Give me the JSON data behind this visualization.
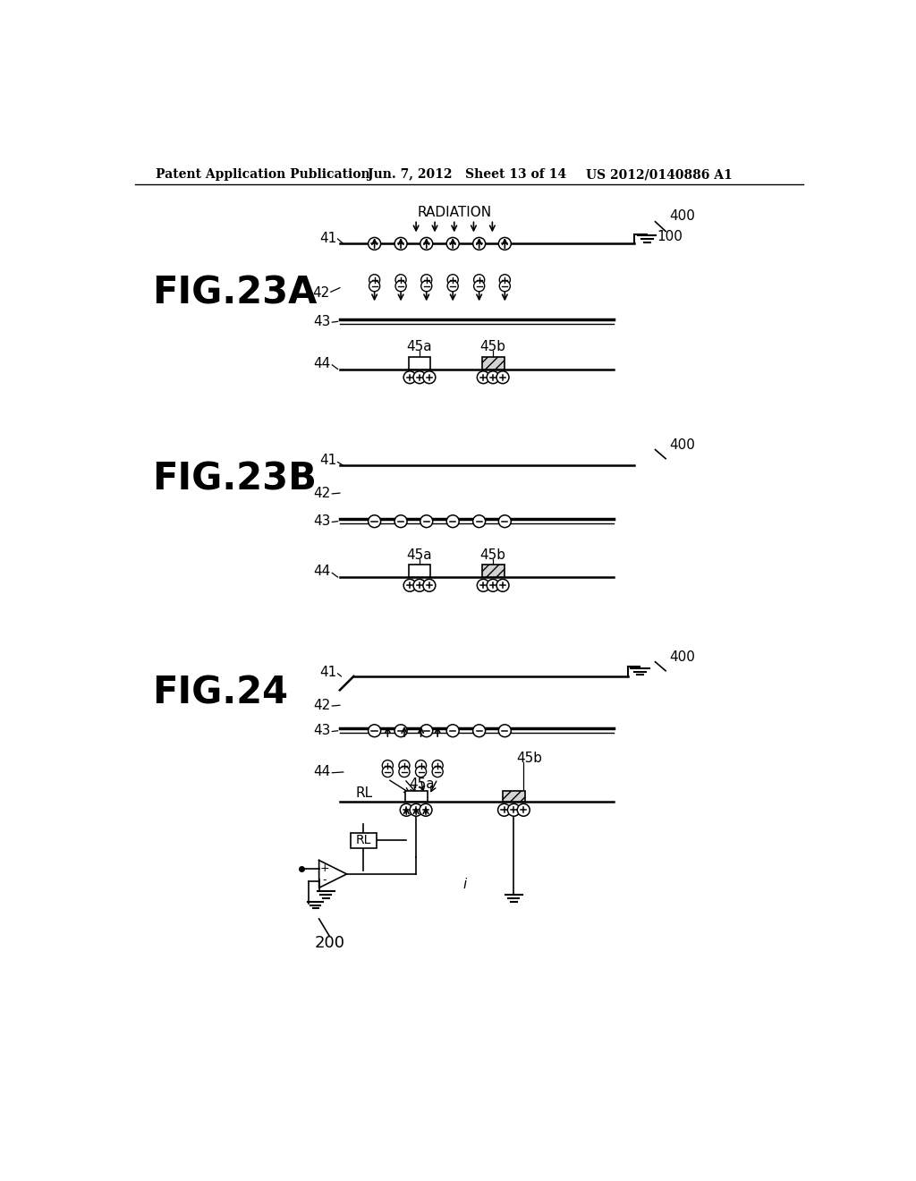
{
  "bg_color": "#ffffff",
  "header_left": "Patent Application Publication",
  "header_center": "Jun. 7, 2012   Sheet 13 of 14",
  "header_right": "US 2012/0140886 A1"
}
